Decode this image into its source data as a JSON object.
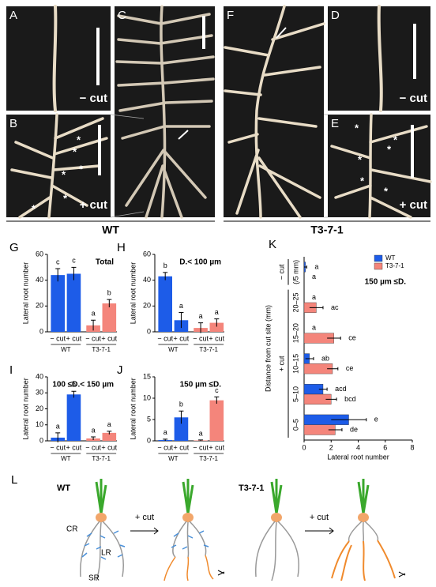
{
  "photos": {
    "panels": [
      "A",
      "B",
      "C",
      "D",
      "E",
      "F"
    ],
    "minus_cut": "− cut",
    "plus_cut": "+ cut",
    "asterisk": "*",
    "wt": "WT",
    "mutant": "T3-7-1"
  },
  "chart_data": [
    {
      "type": "bar",
      "label": "G",
      "title": "Total",
      "ylabel": "Lateral root number",
      "categories": [
        "− cut",
        "+ cut",
        "− cut",
        "+ cut"
      ],
      "groups": [
        "WT",
        "T3-7-1"
      ],
      "values": [
        44,
        45,
        5,
        22
      ],
      "errors": [
        5,
        5,
        4,
        3
      ],
      "letters": [
        "c",
        "c",
        "a",
        "b"
      ],
      "colors": [
        "#1d5ce8",
        "#1d5ce8",
        "#f4857b",
        "#f4857b"
      ],
      "ylim": [
        0,
        60
      ],
      "yticks": [
        0,
        20,
        40,
        60
      ]
    },
    {
      "type": "bar",
      "label": "H",
      "title": "D.< 100 µm",
      "ylabel": "Lateral root number",
      "categories": [
        "− cut",
        "+ cut",
        "− cut",
        "+ cut"
      ],
      "groups": [
        "WT",
        "T3-7-1"
      ],
      "values": [
        43,
        9,
        3,
        7
      ],
      "errors": [
        3,
        6,
        4,
        3
      ],
      "letters": [
        "b",
        "a",
        "a",
        "a"
      ],
      "colors": [
        "#1d5ce8",
        "#1d5ce8",
        "#f4857b",
        "#f4857b"
      ],
      "ylim": [
        0,
        60
      ],
      "yticks": [
        0,
        20,
        40,
        60
      ]
    },
    {
      "type": "bar",
      "label": "I",
      "title": "100 ≤D.< 150 µm",
      "ylabel": "Lateral root number",
      "categories": [
        "− cut",
        "+ cut",
        "− cut",
        "+ cut"
      ],
      "groups": [
        "WT",
        "T3-7-1"
      ],
      "values": [
        2,
        29,
        1.5,
        5
      ],
      "errors": [
        3,
        2,
        1,
        1
      ],
      "letters": [
        "a",
        "b",
        "a",
        "a"
      ],
      "colors": [
        "#1d5ce8",
        "#1d5ce8",
        "#f4857b",
        "#f4857b"
      ],
      "ylim": [
        0,
        40
      ],
      "yticks": [
        0,
        10,
        20,
        30,
        40
      ]
    },
    {
      "type": "bar",
      "label": "J",
      "title": "150 µm ≤D.",
      "ylabel": "Lateral root number",
      "categories": [
        "− cut",
        "+ cut",
        "− cut",
        "+ cut"
      ],
      "groups": [
        "WT",
        "T3-7-1"
      ],
      "values": [
        0.2,
        5.5,
        0.1,
        9.5
      ],
      "errors": [
        0.2,
        1.5,
        0.1,
        0.8
      ],
      "letters": [
        "a",
        "b",
        "a",
        "c"
      ],
      "colors": [
        "#1d5ce8",
        "#1d5ce8",
        "#f4857b",
        "#f4857b"
      ],
      "ylim": [
        0,
        15
      ],
      "yticks": [
        0,
        5,
        10,
        15
      ]
    },
    {
      "type": "barh",
      "label": "K",
      "annotation": "150 µm ≤D.",
      "xlabel": "Lateral root number",
      "ylabel": "Distance from cut site (mm)",
      "categories": [
        "(/5 mm)",
        "20–25",
        "15–20",
        "10–15",
        "5–10",
        "0–5"
      ],
      "groups": [
        "− cut",
        "+ cut"
      ],
      "series": [
        {
          "name": "WT",
          "color": "#1d5ce8",
          "values": [
            0.1,
            0,
            0,
            0.4,
            1.4,
            3.3
          ],
          "errors": [
            0.1,
            0,
            0,
            0.3,
            0.3,
            1.3
          ],
          "letters": [
            "a",
            "a",
            "a",
            "ab",
            "acd",
            "e"
          ]
        },
        {
          "name": "T3-7-1",
          "color": "#f4857b",
          "values": [
            0,
            0.9,
            2.2,
            2.1,
            2.0,
            2.3
          ],
          "errors": [
            0,
            0.5,
            0.5,
            0.4,
            0.4,
            0.5
          ],
          "letters": [
            "a",
            "ac",
            "ce",
            "ce",
            "bcd",
            "de"
          ]
        }
      ],
      "xlim": [
        0,
        8
      ],
      "xticks": [
        0,
        2,
        4,
        6,
        8
      ]
    }
  ],
  "diagram": {
    "label": "L",
    "wt": "WT",
    "mutant": "T3-7-1",
    "cut": "+ cut",
    "cr": "CR",
    "lr": "LR",
    "sr": "SR"
  }
}
